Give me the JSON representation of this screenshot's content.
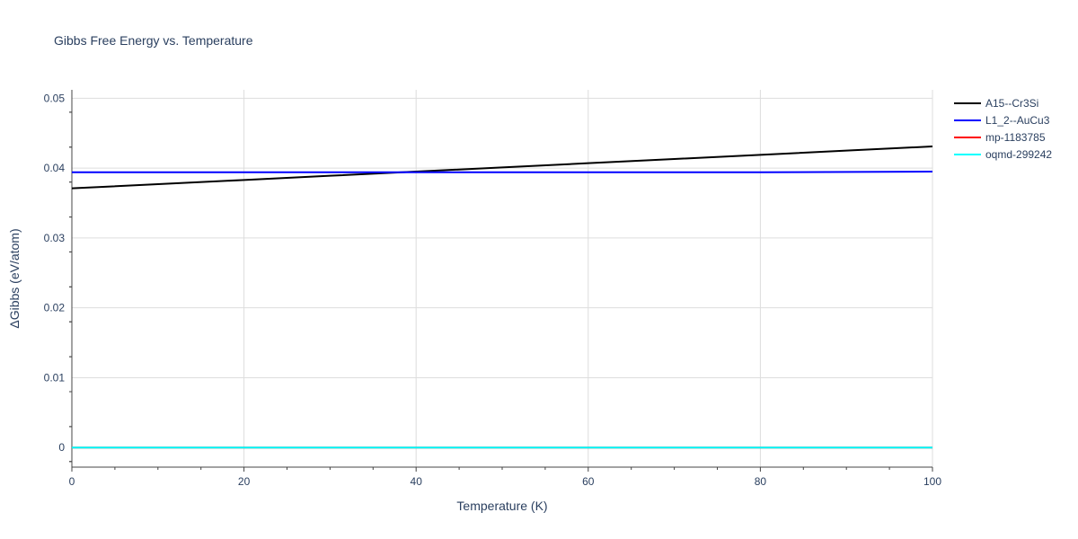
{
  "chart_data": {
    "type": "line",
    "title": "Gibbs Free Energy vs. Temperature",
    "xlabel": "Temperature (K)",
    "ylabel": "ΔGibbs (eV/atom)",
    "xlim": [
      0,
      100
    ],
    "ylim": [
      -0.0028,
      0.0512
    ],
    "x_ticks": [
      0,
      20,
      40,
      60,
      80,
      100
    ],
    "x_tick_labels": [
      "0",
      "20",
      "40",
      "60",
      "80",
      "100"
    ],
    "y_ticks": [
      0,
      0.01,
      0.02,
      0.03,
      0.04,
      0.05
    ],
    "y_tick_labels": [
      "0",
      "0.01",
      "0.02",
      "0.03",
      "0.04",
      "0.05"
    ],
    "grid": true,
    "legend_position": "top-right",
    "series": [
      {
        "name": "A15--Cr3Si",
        "color": "#000000",
        "x": [
          0,
          10,
          20,
          30,
          40,
          50,
          60,
          70,
          80,
          90,
          100
        ],
        "y": [
          0.0371,
          0.0377,
          0.0383,
          0.0389,
          0.0395,
          0.0401,
          0.0407,
          0.0413,
          0.0419,
          0.0425,
          0.0431
        ]
      },
      {
        "name": "L1_2--AuCu3",
        "color": "#0000ff",
        "x": [
          0,
          20,
          40,
          60,
          80,
          100
        ],
        "y": [
          0.0394,
          0.0394,
          0.0394,
          0.0394,
          0.0394,
          0.0395
        ]
      },
      {
        "name": "mp-1183785",
        "color": "#ff0000",
        "x": [
          0,
          20,
          40,
          60,
          80,
          100
        ],
        "y": [
          0,
          0,
          0,
          0,
          0,
          0
        ]
      },
      {
        "name": "oqmd-299242",
        "color": "#00ffff",
        "x": [
          0,
          20,
          40,
          60,
          80,
          100
        ],
        "y": [
          0,
          0,
          0,
          0,
          0,
          0
        ]
      }
    ]
  }
}
